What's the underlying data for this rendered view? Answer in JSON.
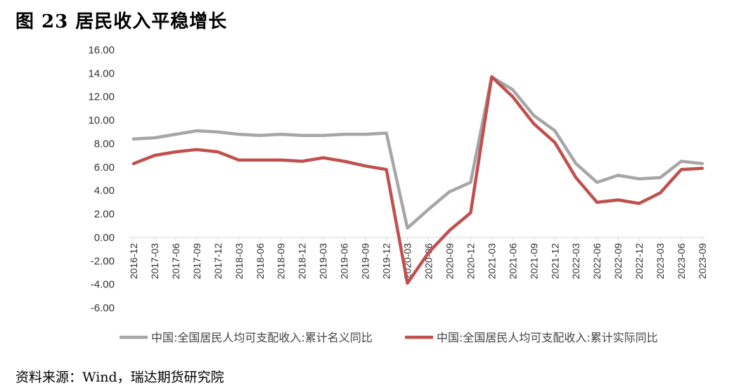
{
  "figure": {
    "title": "图 23 居民收入平稳增长",
    "source": "资料来源：Wind，瑞达期货研究院"
  },
  "chart_data": {
    "type": "line",
    "title": "",
    "xlabel": "",
    "ylabel": "",
    "ylim": [
      -6,
      16
    ],
    "yticks": [
      "-6.00",
      "-4.00",
      "-2.00",
      "0.00",
      "2.00",
      "4.00",
      "6.00",
      "8.00",
      "10.00",
      "12.00",
      "14.00",
      "16.00"
    ],
    "grid": false,
    "legend_position": "bottom",
    "x": [
      "2016-12",
      "2017-03",
      "2017-06",
      "2017-09",
      "2017-12",
      "2018-03",
      "2018-06",
      "2018-09",
      "2018-12",
      "2019-03",
      "2019-06",
      "2019-09",
      "2019-12",
      "2020-03",
      "2020-06",
      "2020-09",
      "2020-12",
      "2021-03",
      "2021-06",
      "2021-09",
      "2021-12",
      "2022-03",
      "2022-06",
      "2022-09",
      "2022-12",
      "2023-03",
      "2023-06",
      "2023-09"
    ],
    "series": [
      {
        "name": "中国:全国居民人均可支配收入:累计名义同比",
        "color": "#A6A6A6",
        "values": [
          8.4,
          8.5,
          8.8,
          9.1,
          9.0,
          8.8,
          8.7,
          8.8,
          8.7,
          8.7,
          8.8,
          8.8,
          8.9,
          0.8,
          2.4,
          3.9,
          4.7,
          13.7,
          12.6,
          10.4,
          9.1,
          6.3,
          4.7,
          5.3,
          5.0,
          5.1,
          6.5,
          6.3
        ]
      },
      {
        "name": "中国:全国居民人均可支配收入:累计实际同比",
        "color": "#C0504D",
        "values": [
          6.3,
          7.0,
          7.3,
          7.5,
          7.3,
          6.6,
          6.6,
          6.6,
          6.5,
          6.8,
          6.5,
          6.1,
          5.8,
          -3.9,
          -1.3,
          0.6,
          2.1,
          13.7,
          12.0,
          9.7,
          8.1,
          5.1,
          3.0,
          3.2,
          2.9,
          3.8,
          5.8,
          5.9
        ]
      }
    ]
  }
}
